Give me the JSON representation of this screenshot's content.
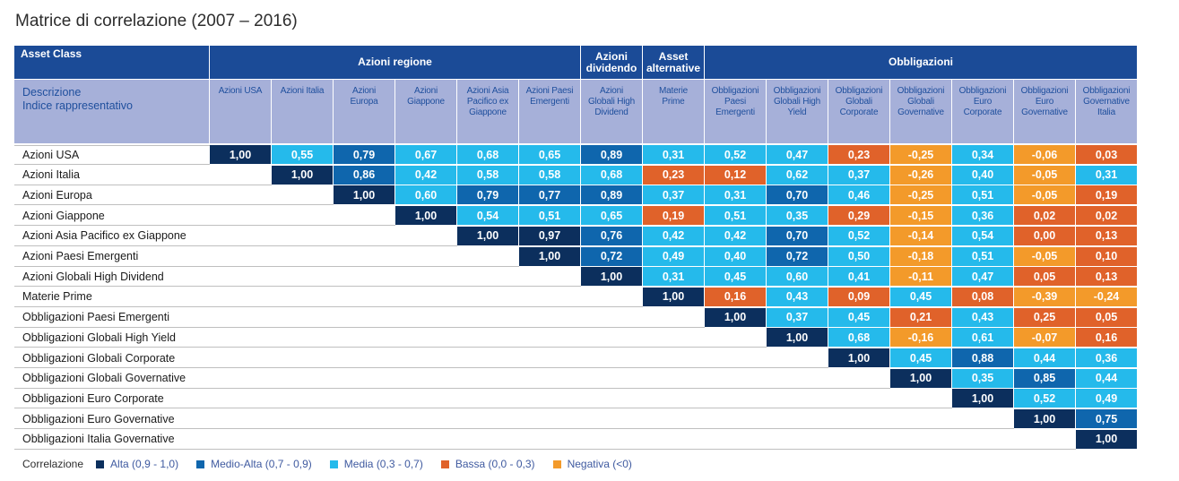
{
  "title": "Matrice di correlazione (2007 – 2016)",
  "header": {
    "asset_class": "Asset Class",
    "groups": [
      "Azioni regione",
      "Azioni\ndividendo",
      "Asset\nalternative",
      "Obbligazioni"
    ],
    "descrizione": "Descrizione\nIndice rappresentativo",
    "columns": [
      "Azioni USA",
      "Azioni Italia",
      "Azioni\nEuropa",
      "Azioni\nGiappone",
      "Azioni Asia\nPacifico ex\nGiappone",
      "Azioni Paesi\nEmergenti",
      "Azioni\nGlobali High\nDividend",
      "Materie\nPrime",
      "Obbligazioni\nPaesi\nEmergenti",
      "Obbligazioni\nGlobali High\nYield",
      "Obbligazioni\nGlobali\nCorporate",
      "Obbligazioni\nGlobali\nGovernative",
      "Obbligazioni\nEuro\nCorporate",
      "Obbligazioni\nEuro\nGovernative",
      "Obbligazioni\nGovernative\nItalia"
    ]
  },
  "legend": {
    "title": "Correlazione",
    "items": [
      {
        "label": "Alta (0,9 - 1,0)",
        "color": "#0c2f5d"
      },
      {
        "label": "Medio-Alta (0,7 - 0,9)",
        "color": "#0f66ad"
      },
      {
        "label": "Media (0,3 - 0,7)",
        "color": "#25baeb"
      },
      {
        "label": "Bassa (0,0 - 0,3)",
        "color": "#e0622a"
      },
      {
        "label": "Negativa (<0)",
        "color": "#f39a2a"
      }
    ]
  },
  "chart_data": {
    "type": "heatmap",
    "title": "Matrice di correlazione (2007 – 2016)",
    "rows": [
      "Azioni USA",
      "Azioni Italia",
      "Azioni Europa",
      "Azioni Giappone",
      "Azioni Asia Pacifico ex Giappone",
      "Azioni Paesi Emergenti",
      "Azioni Globali High Dividend",
      "Materie Prime",
      "Obbligazioni Paesi Emergenti",
      "Obbligazioni Globali High Yield",
      "Obbligazioni Globali Corporate",
      "Obbligazioni Globali Governative",
      "Obbligazioni Euro Corporate",
      "Obbligazioni Euro Governative",
      "Obbligazioni Italia Governative"
    ],
    "values": [
      [
        "1,00",
        "0,55",
        "0,79",
        "0,67",
        "0,68",
        "0,65",
        "0,89",
        "0,31",
        "0,52",
        "0,47",
        "0,23",
        "-0,25",
        "0,34",
        "-0,06",
        "0,03"
      ],
      [
        "1,00",
        "0,86",
        "0,42",
        "0,58",
        "0,58",
        "0,68",
        "0,23",
        "0,12",
        "0,62",
        "0,37",
        "-0,26",
        "0,40",
        "-0,05",
        "0,31"
      ],
      [
        "1,00",
        "0,60",
        "0,79",
        "0,77",
        "0,89",
        "0,37",
        "0,31",
        "0,70",
        "0,46",
        "-0,25",
        "0,51",
        "-0,05",
        "0,19"
      ],
      [
        "1,00",
        "0,54",
        "0,51",
        "0,65",
        "0,19",
        "0,51",
        "0,35",
        "0,29",
        "-0,15",
        "0,36",
        "0,02",
        "0,02"
      ],
      [
        "1,00",
        "0,97",
        "0,76",
        "0,42",
        "0,42",
        "0,70",
        "0,52",
        "-0,14",
        "0,54",
        "0,00",
        "0,13"
      ],
      [
        "1,00",
        "0,72",
        "0,49",
        "0,40",
        "0,72",
        "0,50",
        "-0,18",
        "0,51",
        "-0,05",
        "0,10"
      ],
      [
        "1,00",
        "0,31",
        "0,45",
        "0,60",
        "0,41",
        "-0,11",
        "0,47",
        "0,05",
        "0,13"
      ],
      [
        "1,00",
        "0,16",
        "0,43",
        "0,09",
        "0,45",
        "0,08",
        "-0,39",
        "-0,24"
      ],
      [
        "1,00",
        "0,37",
        "0,45",
        "0,21",
        "0,43",
        "0,25",
        "0,05"
      ],
      [
        "1,00",
        "0,68",
        "-0,16",
        "0,61",
        "-0,07",
        "0,16"
      ],
      [
        "1,00",
        "0,45",
        "0,88",
        "0,44",
        "0,36"
      ],
      [
        "1,00",
        "0,35",
        "0,85",
        "0,44"
      ],
      [
        "1,00",
        "0,52",
        "0,49"
      ],
      [
        "1,00",
        "0,75"
      ],
      [
        "1,00"
      ]
    ]
  }
}
